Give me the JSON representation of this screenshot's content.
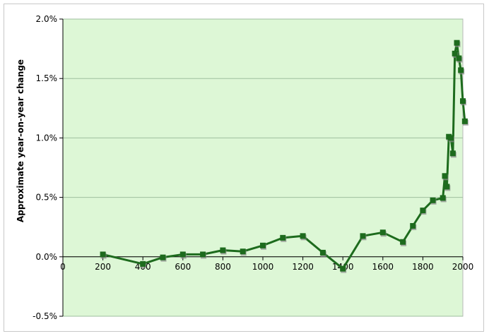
{
  "chart_data": {
    "type": "line",
    "title": "",
    "xlabel": "",
    "ylabel": "Approximate year-on-year change",
    "xlim": [
      0,
      2000
    ],
    "ylim": [
      -0.5,
      2.0
    ],
    "x_ticks": [
      0,
      200,
      400,
      600,
      800,
      1000,
      1200,
      1400,
      1600,
      1800,
      2000
    ],
    "y_ticks": [
      -0.5,
      0.0,
      0.5,
      1.0,
      1.5,
      2.0
    ],
    "x_tick_labels": [
      "0",
      "200",
      "400",
      "600",
      "800",
      "1000",
      "1200",
      "1400",
      "1600",
      "1800",
      "2000"
    ],
    "y_tick_labels": [
      "-0.5%",
      "0.0%",
      "0.5%",
      "1.0%",
      "1.5%",
      "2.0%"
    ],
    "y_unit": "%",
    "grid": "horizontal",
    "legend": "none",
    "colors": {
      "plot_background": "#ddf7d6",
      "line": "#1d6b1d",
      "marker": "#1d6b1d",
      "marker_shadow": "#8a8a8a",
      "gridline": "#9fbf9f"
    },
    "series": [
      {
        "x": [
          200,
          400,
          500,
          600,
          700,
          800,
          900,
          1000,
          1100,
          1200,
          1300,
          1400,
          1500,
          1600,
          1700,
          1750,
          1800,
          1850,
          1900,
          1910,
          1920,
          1930,
          1940,
          1950,
          1960,
          1970,
          1980,
          1990,
          2000,
          2010
        ],
        "y": [
          0.02,
          -0.06,
          -0.005,
          0.02,
          0.02,
          0.055,
          0.045,
          0.095,
          0.16,
          0.175,
          0.035,
          -0.1,
          0.175,
          0.205,
          0.125,
          0.26,
          0.39,
          0.475,
          0.495,
          0.68,
          0.59,
          1.01,
          1.0,
          0.87,
          1.71,
          1.8,
          1.67,
          1.57,
          1.31,
          1.14
        ]
      }
    ]
  }
}
